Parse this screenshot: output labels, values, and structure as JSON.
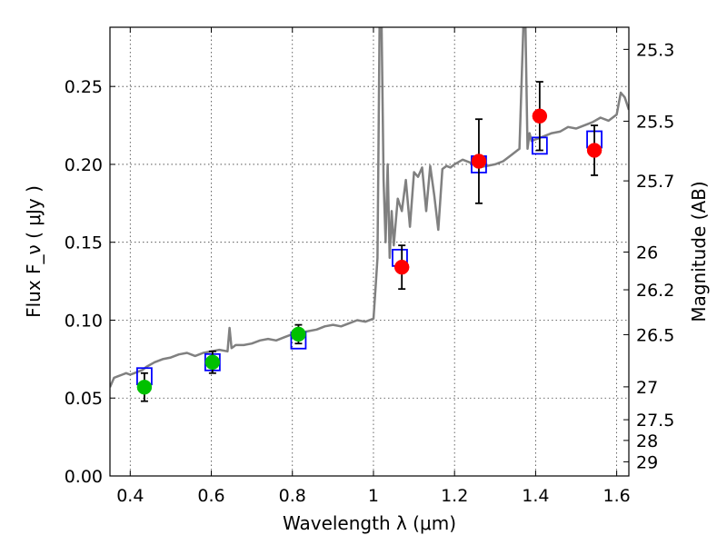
{
  "chart_data": {
    "type": "scatter",
    "xlabel": "Wavelength  λ (μm)",
    "ylabel": "Flux  F_ν  ( μJy )",
    "y2label": "Magnitude (AB)",
    "xlim": [
      0.35,
      1.63
    ],
    "ylim": [
      0.0,
      0.288
    ],
    "grid": true,
    "x_ticks": [
      0.4,
      0.6,
      0.8,
      1.0,
      1.2,
      1.4,
      1.6
    ],
    "x_tick_labels": [
      "0.4",
      "0.6",
      "0.8",
      "1",
      "1.2",
      "1.4",
      "1.6"
    ],
    "y_ticks": [
      0.0,
      0.05,
      0.1,
      0.15,
      0.2,
      0.25
    ],
    "y_tick_labels": [
      "0.00",
      "0.05",
      "0.10",
      "0.15",
      "0.20",
      "0.25"
    ],
    "y2_ticks": [
      {
        "label": "25.3",
        "flux": 0.2738
      },
      {
        "label": "25.5",
        "flux": 0.2277
      },
      {
        "label": "25.7",
        "flux": 0.1894
      },
      {
        "label": "26",
        "flux": 0.1437
      },
      {
        "label": "26.2",
        "flux": 0.1195
      },
      {
        "label": "26.5",
        "flux": 0.0907
      },
      {
        "label": "27",
        "flux": 0.0572
      },
      {
        "label": "27.5",
        "flux": 0.0361
      },
      {
        "label": "28",
        "flux": 0.0228
      },
      {
        "label": "29",
        "flux": 0.0091
      }
    ],
    "series": [
      {
        "kind": "line",
        "color": "#808080",
        "x": [
          0.35,
          0.36,
          0.37,
          0.38,
          0.39,
          0.4,
          0.41,
          0.42,
          0.43,
          0.44,
          0.46,
          0.48,
          0.5,
          0.52,
          0.54,
          0.56,
          0.58,
          0.6,
          0.62,
          0.64,
          0.645,
          0.65,
          0.655,
          0.66,
          0.68,
          0.7,
          0.72,
          0.74,
          0.76,
          0.78,
          0.8,
          0.82,
          0.84,
          0.86,
          0.88,
          0.9,
          0.92,
          0.94,
          0.96,
          0.98,
          1.0,
          1.005,
          1.01,
          1.015,
          1.02,
          1.025,
          1.03,
          1.035,
          1.04,
          1.045,
          1.05,
          1.06,
          1.07,
          1.08,
          1.09,
          1.1,
          1.11,
          1.12,
          1.13,
          1.14,
          1.15,
          1.16,
          1.17,
          1.18,
          1.19,
          1.2,
          1.22,
          1.24,
          1.26,
          1.28,
          1.3,
          1.32,
          1.34,
          1.36,
          1.37,
          1.375,
          1.38,
          1.385,
          1.39,
          1.4,
          1.42,
          1.44,
          1.46,
          1.48,
          1.5,
          1.52,
          1.54,
          1.56,
          1.58,
          1.6,
          1.61,
          1.62,
          1.63
        ],
        "y": [
          0.057,
          0.063,
          0.064,
          0.065,
          0.066,
          0.065,
          0.066,
          0.067,
          0.068,
          0.07,
          0.073,
          0.075,
          0.076,
          0.078,
          0.079,
          0.077,
          0.079,
          0.08,
          0.081,
          0.08,
          0.095,
          0.082,
          0.083,
          0.084,
          0.084,
          0.085,
          0.087,
          0.088,
          0.087,
          0.089,
          0.091,
          0.092,
          0.093,
          0.094,
          0.096,
          0.097,
          0.096,
          0.098,
          0.1,
          0.099,
          0.101,
          0.12,
          0.14,
          0.29,
          0.29,
          0.19,
          0.15,
          0.2,
          0.14,
          0.17,
          0.148,
          0.178,
          0.17,
          0.19,
          0.16,
          0.195,
          0.192,
          0.198,
          0.17,
          0.199,
          0.18,
          0.158,
          0.197,
          0.199,
          0.198,
          0.2,
          0.203,
          0.201,
          0.198,
          0.199,
          0.2,
          0.202,
          0.206,
          0.21,
          0.29,
          0.29,
          0.21,
          0.22,
          0.215,
          0.216,
          0.218,
          0.22,
          0.221,
          0.224,
          0.223,
          0.225,
          0.227,
          0.23,
          0.228,
          0.232,
          0.246,
          0.243,
          0.235
        ]
      },
      {
        "kind": "scatter",
        "marker": "square-open",
        "color": "#0000ff",
        "x": [
          0.435,
          0.603,
          0.815,
          1.065,
          1.26,
          1.41,
          1.545
        ],
        "y": [
          0.064,
          0.073,
          0.087,
          0.14,
          0.2,
          0.212,
          0.216
        ]
      },
      {
        "kind": "scatter",
        "marker": "circle",
        "color": "#00c000",
        "x": [
          0.435,
          0.603,
          0.815
        ],
        "y": [
          0.057,
          0.073,
          0.091
        ],
        "yerr": [
          0.009,
          0.007,
          0.006
        ]
      },
      {
        "kind": "scatter",
        "marker": "circle",
        "color": "#ff0000",
        "x": [
          1.07,
          1.26,
          1.41,
          1.545
        ],
        "y": [
          0.134,
          0.202,
          0.231,
          0.209
        ],
        "yerr": [
          0.014,
          0.027,
          0.022,
          0.016
        ]
      }
    ]
  }
}
